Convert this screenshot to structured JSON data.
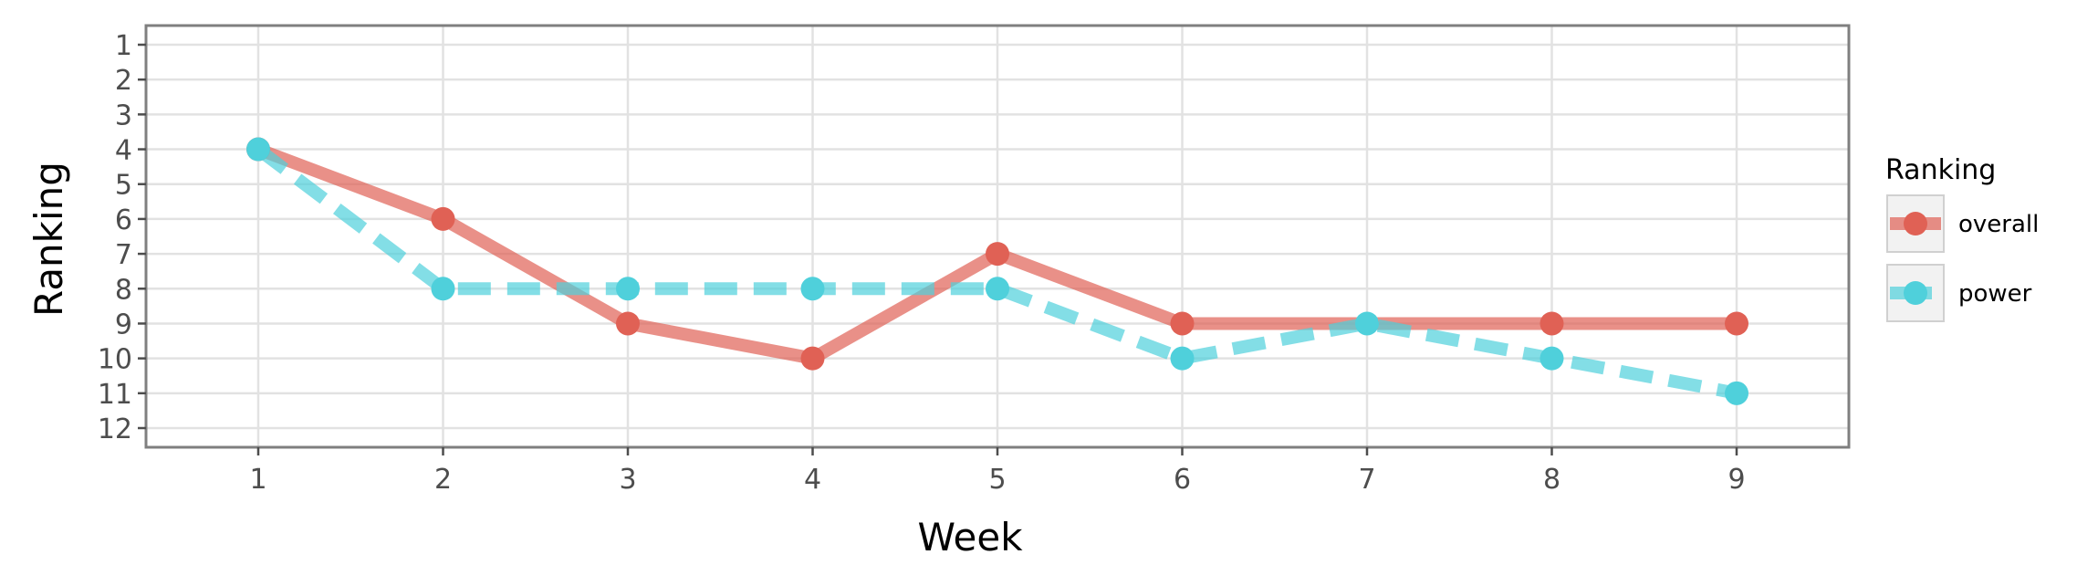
{
  "chart_data": {
    "type": "line",
    "title": "",
    "xlabel": "Week",
    "ylabel": "Ranking",
    "x": [
      1,
      2,
      3,
      4,
      5,
      6,
      7,
      8,
      9
    ],
    "x_ticks": [
      "1",
      "2",
      "3",
      "4",
      "5",
      "6",
      "7",
      "8",
      "9"
    ],
    "y_ticks": [
      "1",
      "2",
      "3",
      "4",
      "5",
      "6",
      "7",
      "8",
      "9",
      "10",
      "11",
      "12"
    ],
    "ylim": [
      12,
      1
    ],
    "y_reversed": true,
    "grid": true,
    "legend": {
      "title": "Ranking",
      "placement": "right"
    },
    "series": [
      {
        "name": "overall",
        "values": [
          4,
          6,
          9,
          10,
          7,
          9,
          null,
          9,
          9
        ],
        "color": "#e06155",
        "line_style": "solid"
      },
      {
        "name": "power",
        "values": [
          4,
          8,
          8,
          8,
          8,
          10,
          9,
          10,
          11
        ],
        "color": "#4fd0db",
        "line_style": "dashed"
      }
    ]
  }
}
